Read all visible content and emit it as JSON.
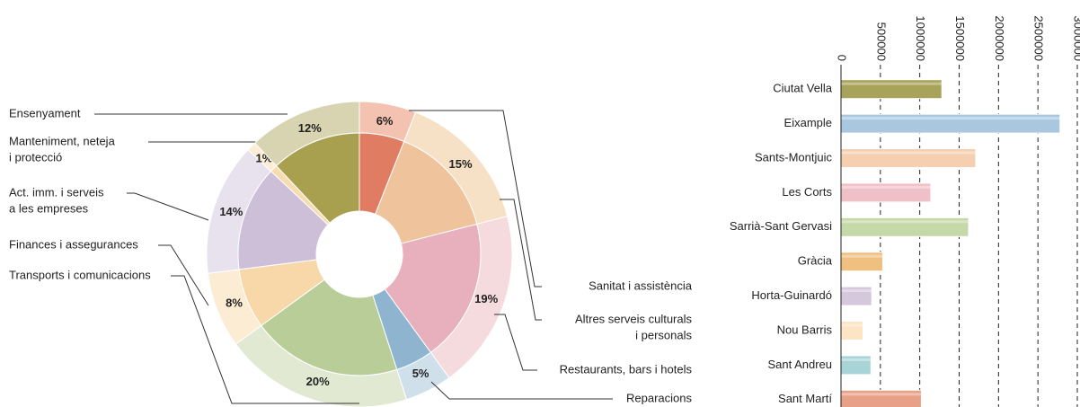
{
  "chart_data": [
    {
      "type": "donut",
      "categories": [
        [
          "Sanitat i assistència"
        ],
        [
          "Altres serveis culturals",
          "i personals"
        ],
        [
          "Restaurants, bars i hotels"
        ],
        [
          "Reparacions"
        ],
        [
          "Transports i comunicacions"
        ],
        [
          "Finances i assegurances"
        ],
        [
          "Act. imm. i serveis",
          "a les empreses"
        ],
        [
          "Manteniment, neteja",
          "i protecció"
        ],
        [
          "Ensenyament"
        ]
      ],
      "values": [
        6,
        15,
        19,
        5,
        20,
        8,
        14,
        1,
        12
      ],
      "value_labels": [
        "6%",
        "15%",
        "19%",
        "5%",
        "20%",
        "8%",
        "14%",
        "1%",
        "12%"
      ],
      "colors": [
        "#e07c62",
        "#efc39c",
        "#e8b0bd",
        "#8fb4cf",
        "#b9cd99",
        "#f8d8a8",
        "#cdbfd8",
        "#f6dcb0",
        "#a89f4f"
      ],
      "light_colors": [
        "#f3c2b1",
        "#f6e0c6",
        "#f5dade",
        "#d0e0ea",
        "#e1e9d2",
        "#fdecd4",
        "#e8e1ee",
        "#fbedd6",
        "#d8d4b2"
      ]
    },
    {
      "type": "hbar",
      "categories": [
        "Ciutat Vella",
        "Eixample",
        "Sants-Montjuic",
        "Les Corts",
        "Sarrià-Sant Gervasi",
        "Gràcia",
        "Horta-Guinardó",
        "Nou Barris",
        "Sant Andreu",
        "Sant Martí"
      ],
      "values": [
        1280000,
        2780000,
        1710000,
        1140000,
        1620000,
        530000,
        390000,
        280000,
        380000,
        1020000
      ],
      "colors": [
        "#a8a35a",
        "#a9c8df",
        "#f5cfb0",
        "#f0c0c8",
        "#c5d8a8",
        "#f0c080",
        "#d5c8dc",
        "#fde4c4",
        "#a8d4d8",
        "#e8a088"
      ],
      "xlim": [
        0,
        3000000
      ],
      "xticks": [
        0,
        500000,
        1000000,
        1500000,
        2000000,
        2500000,
        3000000
      ],
      "grid": true
    }
  ]
}
